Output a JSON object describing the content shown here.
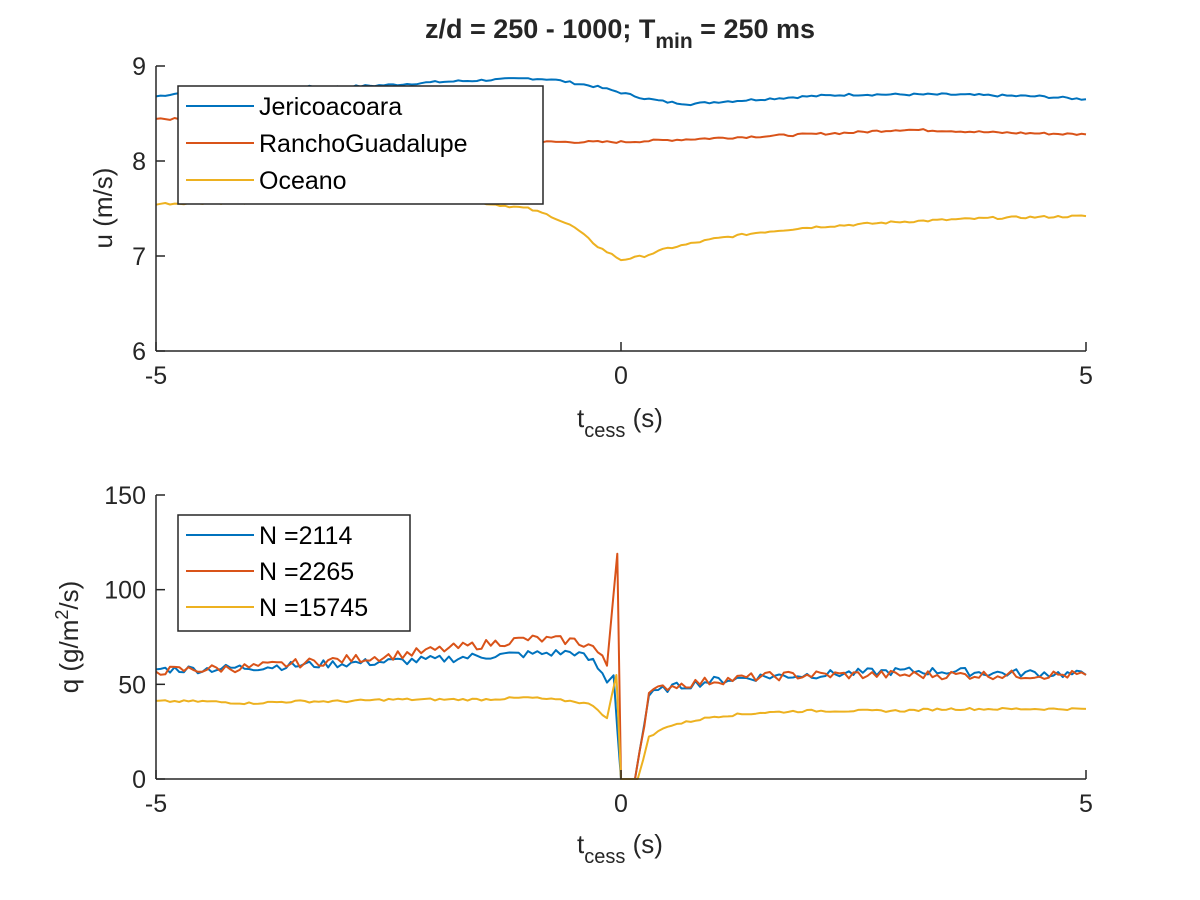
{
  "figure": {
    "title_main": "z/d = 250 - 1000; T",
    "title_sub": "min",
    "title_tail": " = 250 ms"
  },
  "colors": {
    "blue": "#0072BD",
    "orange": "#D95319",
    "yellow": "#EDB120",
    "axis": "#262626"
  },
  "chart_data": [
    {
      "type": "line",
      "xlabel_main": "t",
      "xlabel_sub": "cess",
      "xlabel_tail": " (s)",
      "ylabel": "u (m/s)",
      "xlim": [
        -5,
        5
      ],
      "ylim": [
        6,
        9
      ],
      "xticks": [
        -5,
        0,
        5
      ],
      "yticks": [
        6,
        7,
        8,
        9
      ],
      "legend_position": "top-left",
      "grid": false,
      "series": [
        {
          "name": "Jericoacoara",
          "color": "#0072BD",
          "x": [
            -5,
            -4.5,
            -4,
            -3.5,
            -3,
            -2.5,
            -2,
            -1.5,
            -1,
            -0.75,
            -0.5,
            -0.25,
            0,
            0.25,
            0.5,
            0.75,
            1,
            1.5,
            2,
            2.5,
            3,
            3.5,
            4,
            4.5,
            5
          ],
          "y": [
            8.68,
            8.75,
            8.76,
            8.78,
            8.78,
            8.8,
            8.83,
            8.85,
            8.87,
            8.86,
            8.82,
            8.78,
            8.72,
            8.66,
            8.62,
            8.6,
            8.62,
            8.65,
            8.68,
            8.7,
            8.7,
            8.7,
            8.69,
            8.68,
            8.65
          ]
        },
        {
          "name": "RanchoGuadalupe",
          "color": "#D95319",
          "x": [
            -5,
            -4.5,
            -4,
            -3.5,
            -3,
            -2.5,
            -2,
            -1.5,
            -1,
            -0.5,
            0,
            0.5,
            1,
            1.5,
            2,
            2.5,
            3,
            3.5,
            4,
            4.5,
            5
          ],
          "y": [
            8.45,
            8.43,
            8.42,
            8.38,
            8.35,
            8.3,
            8.26,
            8.22,
            8.2,
            8.2,
            8.2,
            8.22,
            8.24,
            8.26,
            8.28,
            8.3,
            8.33,
            8.32,
            8.3,
            8.29,
            8.28
          ]
        },
        {
          "name": "Oceano",
          "color": "#EDB120",
          "x": [
            -5,
            -4.5,
            -4,
            -3.5,
            -3,
            -2.5,
            -2,
            -1.5,
            -1,
            -0.75,
            -0.5,
            -0.25,
            0,
            0.25,
            0.5,
            1,
            1.5,
            2,
            2.5,
            3,
            3.5,
            4,
            4.5,
            5
          ],
          "y": [
            7.55,
            7.56,
            7.56,
            7.57,
            7.57,
            7.58,
            7.58,
            7.56,
            7.5,
            7.42,
            7.3,
            7.1,
            6.96,
            7.0,
            7.08,
            7.18,
            7.25,
            7.3,
            7.33,
            7.36,
            7.38,
            7.4,
            7.41,
            7.42
          ]
        }
      ]
    },
    {
      "type": "line",
      "xlabel_main": "t",
      "xlabel_sub": "cess",
      "xlabel_tail": " (s)",
      "ylabel_main": "q (g/m",
      "ylabel_sup": "2",
      "ylabel_tail": "/s)",
      "xlim": [
        -5,
        5
      ],
      "ylim": [
        0,
        150
      ],
      "xticks": [
        -5,
        0,
        5
      ],
      "yticks": [
        0,
        50,
        100,
        150
      ],
      "legend_position": "top-left",
      "grid": false,
      "series": [
        {
          "name": "N =2114",
          "color": "#0072BD",
          "x": [
            -5,
            -4.5,
            -4,
            -3.5,
            -3,
            -2.5,
            -2,
            -1.5,
            -1,
            -0.5,
            -0.3,
            -0.15,
            -0.08,
            0,
            0.08,
            0.15,
            0.3,
            0.5,
            1,
            1.5,
            2,
            2.5,
            3,
            3.5,
            4,
            4.5,
            5
          ],
          "y": [
            58,
            58,
            59,
            60,
            61,
            62,
            63,
            65,
            66,
            67,
            62,
            52,
            55,
            0,
            0,
            0,
            44,
            48,
            52,
            54,
            55,
            56,
            57,
            57,
            56,
            56,
            55
          ],
          "noise": 2.2
        },
        {
          "name": "N =2265",
          "color": "#D95319",
          "x": [
            -5,
            -4.5,
            -4,
            -3.5,
            -3,
            -2.5,
            -2,
            -1.5,
            -1,
            -0.5,
            -0.3,
            -0.15,
            -0.04,
            0,
            0.08,
            0.15,
            0.3,
            0.5,
            1,
            1.5,
            2,
            2.5,
            3,
            3.5,
            4,
            4.5,
            5
          ],
          "y": [
            57,
            58,
            59,
            61,
            63,
            65,
            68,
            71,
            74,
            73,
            70,
            60,
            121,
            0,
            0,
            0,
            45,
            49,
            52,
            54,
            55,
            55,
            55,
            55,
            55,
            55,
            55
          ],
          "noise": 2.4
        },
        {
          "name": "N =15745",
          "color": "#EDB120",
          "x": [
            -5,
            -4.5,
            -4,
            -3.5,
            -3,
            -2.5,
            -2,
            -1.5,
            -1,
            -0.5,
            -0.3,
            -0.15,
            -0.05,
            0,
            0.08,
            0.18,
            0.3,
            0.5,
            1,
            1.5,
            2,
            2.5,
            3,
            3.5,
            4,
            4.5,
            5
          ],
          "y": [
            41,
            41,
            40,
            41,
            41,
            42,
            42,
            42,
            43,
            41,
            39,
            32,
            55,
            0,
            0,
            0,
            22,
            28,
            33,
            35,
            36,
            36,
            36,
            37,
            37,
            37,
            37
          ],
          "noise": 0.6
        }
      ]
    }
  ]
}
